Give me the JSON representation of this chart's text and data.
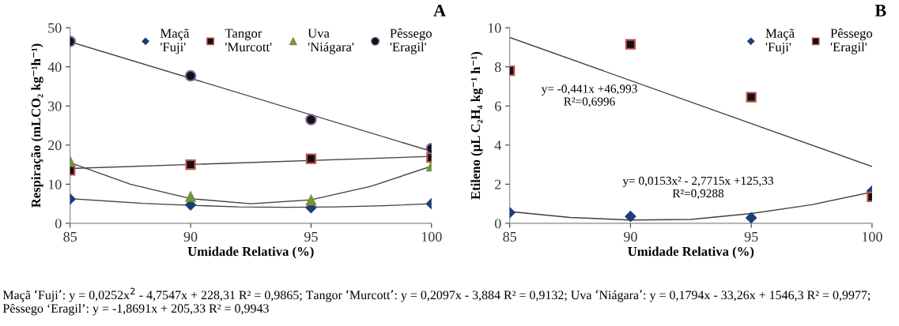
{
  "chart_data": [
    {
      "type": "scatter",
      "title": "A",
      "xlabel": "Umidade Relativa (%)",
      "ylabel": "Respiração (mLCO₂ kg⁻¹h⁻¹)",
      "xlim": [
        85,
        100
      ],
      "xticks": [
        85,
        90,
        95,
        100
      ],
      "ylim": [
        0,
        50
      ],
      "yticks": [
        0,
        10,
        20,
        30,
        40,
        50
      ],
      "grid": false,
      "legend": "top right",
      "x": [
        85,
        90,
        95,
        100
      ],
      "series": [
        {
          "name": "Maçã\n'Fuji'",
          "color": "#1f3d7a",
          "marker": "diamond",
          "values": [
            6.2,
            4.7,
            4.0,
            5.0
          ]
        },
        {
          "name": "Tangor\n'Murcott'",
          "color": "#c0504d",
          "marker": "square",
          "values": [
            13.5,
            15.0,
            16.5,
            16.8
          ]
        },
        {
          "name": "Uva\n'Niágara'",
          "color": "#77933c",
          "marker": "triangle",
          "values": [
            15.8,
            6.8,
            5.9,
            14.6
          ]
        },
        {
          "name": "Pêssego\n'Eragil'",
          "color": "#8064a2",
          "marker": "circle",
          "values": [
            46.5,
            37.7,
            26.5,
            19.1
          ]
        },
        {
          "type": "line",
          "color": "#404040",
          "x": [
            85,
            88,
            90,
            92,
            94,
            96,
            98,
            100
          ],
          "values": [
            6.3,
            5.1,
            4.6,
            4.2,
            4.1,
            4.2,
            4.5,
            5.0
          ]
        },
        {
          "type": "line",
          "color": "#404040",
          "x": [
            85,
            100
          ],
          "values": [
            14.0,
            17.1
          ]
        },
        {
          "type": "line",
          "color": "#404040",
          "x": [
            85,
            87.5,
            90,
            92.5,
            95,
            97.5,
            100
          ],
          "values": [
            15.5,
            10.0,
            6.3,
            5.0,
            6.0,
            9.5,
            14.6
          ]
        },
        {
          "type": "line",
          "color": "#404040",
          "x": [
            85,
            100
          ],
          "values": [
            46.4,
            18.4
          ]
        }
      ],
      "annotations": [
        "Maçã ‘Fuji’: y = 0,0252x$^{2}$ - 4,7547x + 228,31 R² = 0,9865; Tangor ‘Murcott’: y = 0,2097x - 3,884 R² = 0,9132; Uva ‘Niágara’: y = 0,1794x - 33,26x + 1546,3 R² = 0,9977; Pêssego ‘Eragil’: y = -1,8691x + 205,33 R² = 0,9943"
      ]
    },
    {
      "type": "scatter",
      "title": "B",
      "xlabel": "Umidade Relativa (%)",
      "ylabel": "Etileno (µL C₂H₄ kg⁻¹ h⁻¹)",
      "xlim": [
        85,
        100
      ],
      "xticks": [
        85,
        90,
        95,
        100
      ],
      "ylim": [
        0,
        10
      ],
      "yticks": [
        0,
        2,
        4,
        6,
        8,
        10
      ],
      "grid": false,
      "legend": "top right",
      "x": [
        85,
        90,
        95,
        100
      ],
      "series": [
        {
          "name": "Maçã\n'Fuji'",
          "color": "#1f3d7a",
          "marker": "diamond",
          "values": [
            0.55,
            0.35,
            0.28,
            1.65
          ]
        },
        {
          "name": "Pêssego\n'Eragil'",
          "color": "#c0504d",
          "marker": "square",
          "values": [
            7.8,
            9.15,
            6.45,
            1.35
          ]
        },
        {
          "type": "line",
          "color": "#404040",
          "x": [
            85,
            87.5,
            90,
            92.5,
            95,
            97.5,
            100
          ],
          "values": [
            0.6,
            0.3,
            0.17,
            0.2,
            0.5,
            0.95,
            1.6
          ]
        },
        {
          "type": "line",
          "color": "#404040",
          "x": [
            85,
            100
          ],
          "values": [
            9.5,
            2.9
          ]
        }
      ],
      "annotations": [
        "y= -0,441x +46,993\nR²=0,6996",
        "y= 0,0153x² - 2,7715x +125,33\nR²=0,9288"
      ]
    }
  ]
}
